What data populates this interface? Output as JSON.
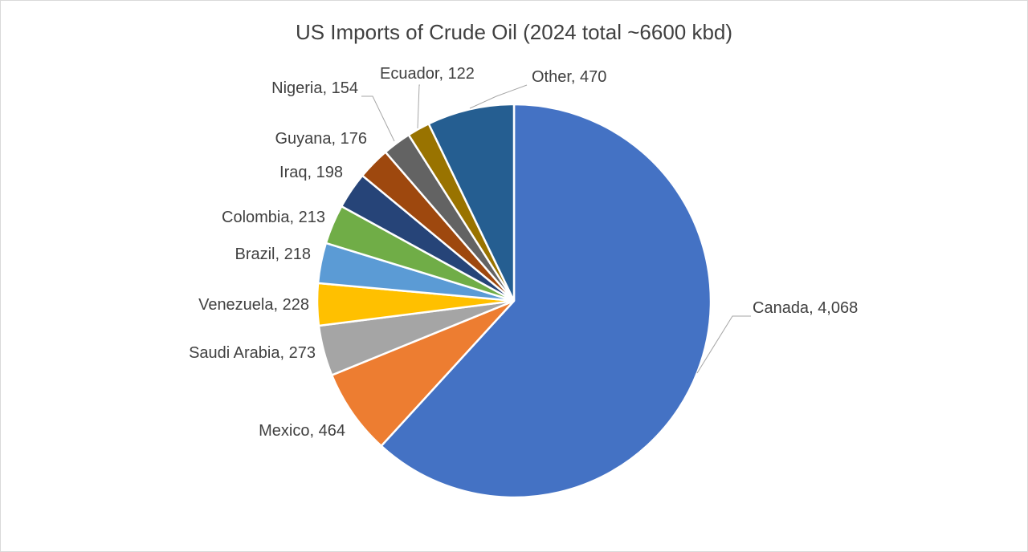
{
  "chart_data": {
    "type": "pie",
    "title": "US Imports of Crude Oil (2024 total ~6600 kbd)",
    "categories": [
      "Canada",
      "Mexico",
      "Saudi Arabia",
      "Venezuela",
      "Brazil",
      "Colombia",
      "Iraq",
      "Guyana",
      "Nigeria",
      "Ecuador",
      "Other"
    ],
    "values": [
      4068,
      464,
      273,
      228,
      218,
      213,
      198,
      176,
      154,
      122,
      470
    ],
    "value_labels": [
      "4,068",
      "464",
      "273",
      "228",
      "218",
      "213",
      "198",
      "176",
      "154",
      "122",
      "470"
    ],
    "label_separator": ", ",
    "colors": [
      "#4472c4",
      "#ed7d31",
      "#a5a5a5",
      "#ffc000",
      "#5b9bd5",
      "#70ad47",
      "#264478",
      "#9e480e",
      "#636363",
      "#997300",
      "#255e91"
    ]
  }
}
